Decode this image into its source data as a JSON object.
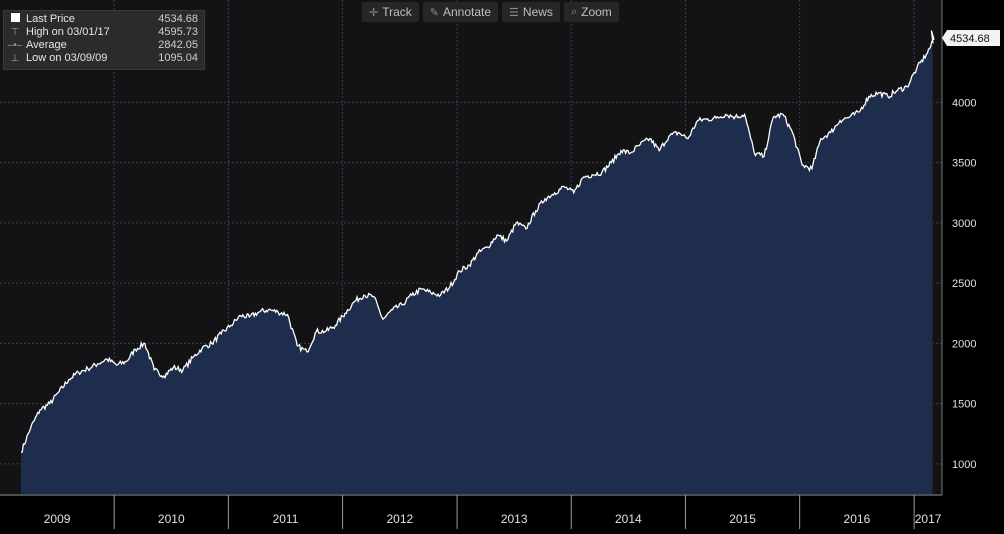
{
  "toolbar": {
    "items": [
      {
        "label": "Track",
        "icon": "crosshair-icon"
      },
      {
        "label": "Annotate",
        "icon": "pencil-icon"
      },
      {
        "label": "News",
        "icon": "news-icon"
      },
      {
        "label": "Zoom",
        "icon": "magnifier-icon"
      }
    ]
  },
  "legend": {
    "rows": [
      {
        "label": "Last Price",
        "value": "4534.68"
      },
      {
        "label": "High on 03/01/17",
        "value": "4595.73"
      },
      {
        "label": "Average",
        "value": "2842.05"
      },
      {
        "label": "Low on 03/09/09",
        "value": "1095.04"
      }
    ]
  },
  "last_price_tag": "4534.68",
  "colors": {
    "background": "#131316",
    "area_fill": "#1e2d4c",
    "line": "#ffffff",
    "grid": "#3a3f48",
    "axis_text": "#e0e0e0"
  },
  "chart_data": {
    "type": "area",
    "title": "",
    "xlabel": "",
    "ylabel": "",
    "ylim": [
      750,
      4850
    ],
    "xlim": [
      "2009-01-01",
      "2017-03-31"
    ],
    "y_ticks": [
      1000,
      1500,
      2000,
      2500,
      3000,
      3500,
      4000
    ],
    "x_ticks": [
      "2009",
      "2010",
      "2011",
      "2012",
      "2013",
      "2014",
      "2015",
      "2016",
      "2017"
    ],
    "grid": true,
    "series": [
      {
        "x": [
          "2009-03",
          "2009-04",
          "2009-05",
          "2009-06",
          "2009-07",
          "2009-08",
          "2009-09",
          "2009-10",
          "2009-11",
          "2009-12",
          "2010-01",
          "2010-02",
          "2010-03",
          "2010-04",
          "2010-05",
          "2010-06",
          "2010-07",
          "2010-08",
          "2010-09",
          "2010-10",
          "2010-11",
          "2010-12",
          "2011-01",
          "2011-02",
          "2011-03",
          "2011-04",
          "2011-05",
          "2011-06",
          "2011-07",
          "2011-08",
          "2011-09",
          "2011-10",
          "2011-11",
          "2011-12",
          "2012-01",
          "2012-02",
          "2012-03",
          "2012-04",
          "2012-05",
          "2012-06",
          "2012-07",
          "2012-08",
          "2012-09",
          "2012-10",
          "2012-11",
          "2012-12",
          "2013-01",
          "2013-02",
          "2013-03",
          "2013-04",
          "2013-05",
          "2013-06",
          "2013-07",
          "2013-08",
          "2013-09",
          "2013-10",
          "2013-11",
          "2013-12",
          "2014-01",
          "2014-02",
          "2014-03",
          "2014-04",
          "2014-05",
          "2014-06",
          "2014-07",
          "2014-08",
          "2014-09",
          "2014-10",
          "2014-11",
          "2014-12",
          "2015-01",
          "2015-02",
          "2015-03",
          "2015-04",
          "2015-05",
          "2015-06",
          "2015-07",
          "2015-08",
          "2015-09",
          "2015-10",
          "2015-11",
          "2015-12",
          "2016-01",
          "2016-02",
          "2016-03",
          "2016-04",
          "2016-05",
          "2016-06",
          "2016-07",
          "2016-08",
          "2016-09",
          "2016-10",
          "2016-11",
          "2016-12",
          "2017-01",
          "2017-02",
          "2017-03"
        ],
        "values": [
          1095,
          1300,
          1450,
          1500,
          1600,
          1700,
          1760,
          1790,
          1830,
          1870,
          1820,
          1850,
          1950,
          2000,
          1780,
          1730,
          1800,
          1780,
          1880,
          1960,
          2000,
          2080,
          2150,
          2230,
          2220,
          2260,
          2280,
          2260,
          2240,
          1980,
          1930,
          2100,
          2100,
          2150,
          2250,
          2350,
          2400,
          2390,
          2200,
          2280,
          2320,
          2400,
          2450,
          2420,
          2400,
          2470,
          2600,
          2650,
          2750,
          2800,
          2900,
          2850,
          3000,
          2950,
          3100,
          3200,
          3250,
          3300,
          3250,
          3380,
          3400,
          3420,
          3500,
          3600,
          3580,
          3650,
          3700,
          3600,
          3720,
          3750,
          3700,
          3850,
          3860,
          3870,
          3900,
          3880,
          3900,
          3580,
          3550,
          3880,
          3900,
          3750,
          3480,
          3450,
          3700,
          3750,
          3850,
          3880,
          3920,
          4050,
          4080,
          4050,
          4100,
          4130,
          4280,
          4400,
          4534.68
        ]
      }
    ]
  }
}
